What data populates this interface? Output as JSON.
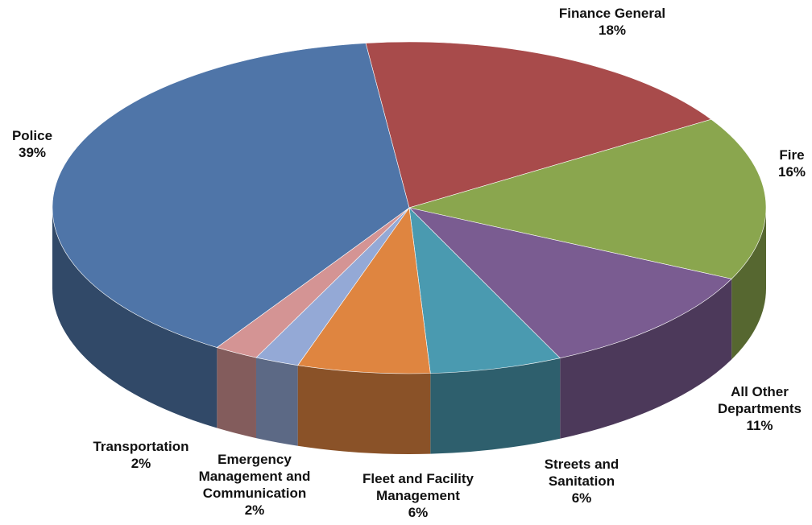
{
  "chart_data": {
    "type": "pie",
    "categories": [
      "Finance General",
      "Fire",
      "All Other Departments",
      "Streets and Sanitation",
      "Fleet and Facility Management",
      "Emergency Management and Communication",
      "Transportation",
      "Police"
    ],
    "values": [
      18,
      16,
      11,
      6,
      6,
      2,
      2,
      39
    ],
    "value_labels": [
      "18%",
      "16%",
      "11%",
      "6%",
      "6%",
      "2%",
      "2%",
      "39%"
    ],
    "colors": [
      "#a84b4b",
      "#8aa64e",
      "#7a5c91",
      "#4a9ab0",
      "#df8540",
      "#94a9d6",
      "#d49494",
      "#4f75a8"
    ]
  }
}
